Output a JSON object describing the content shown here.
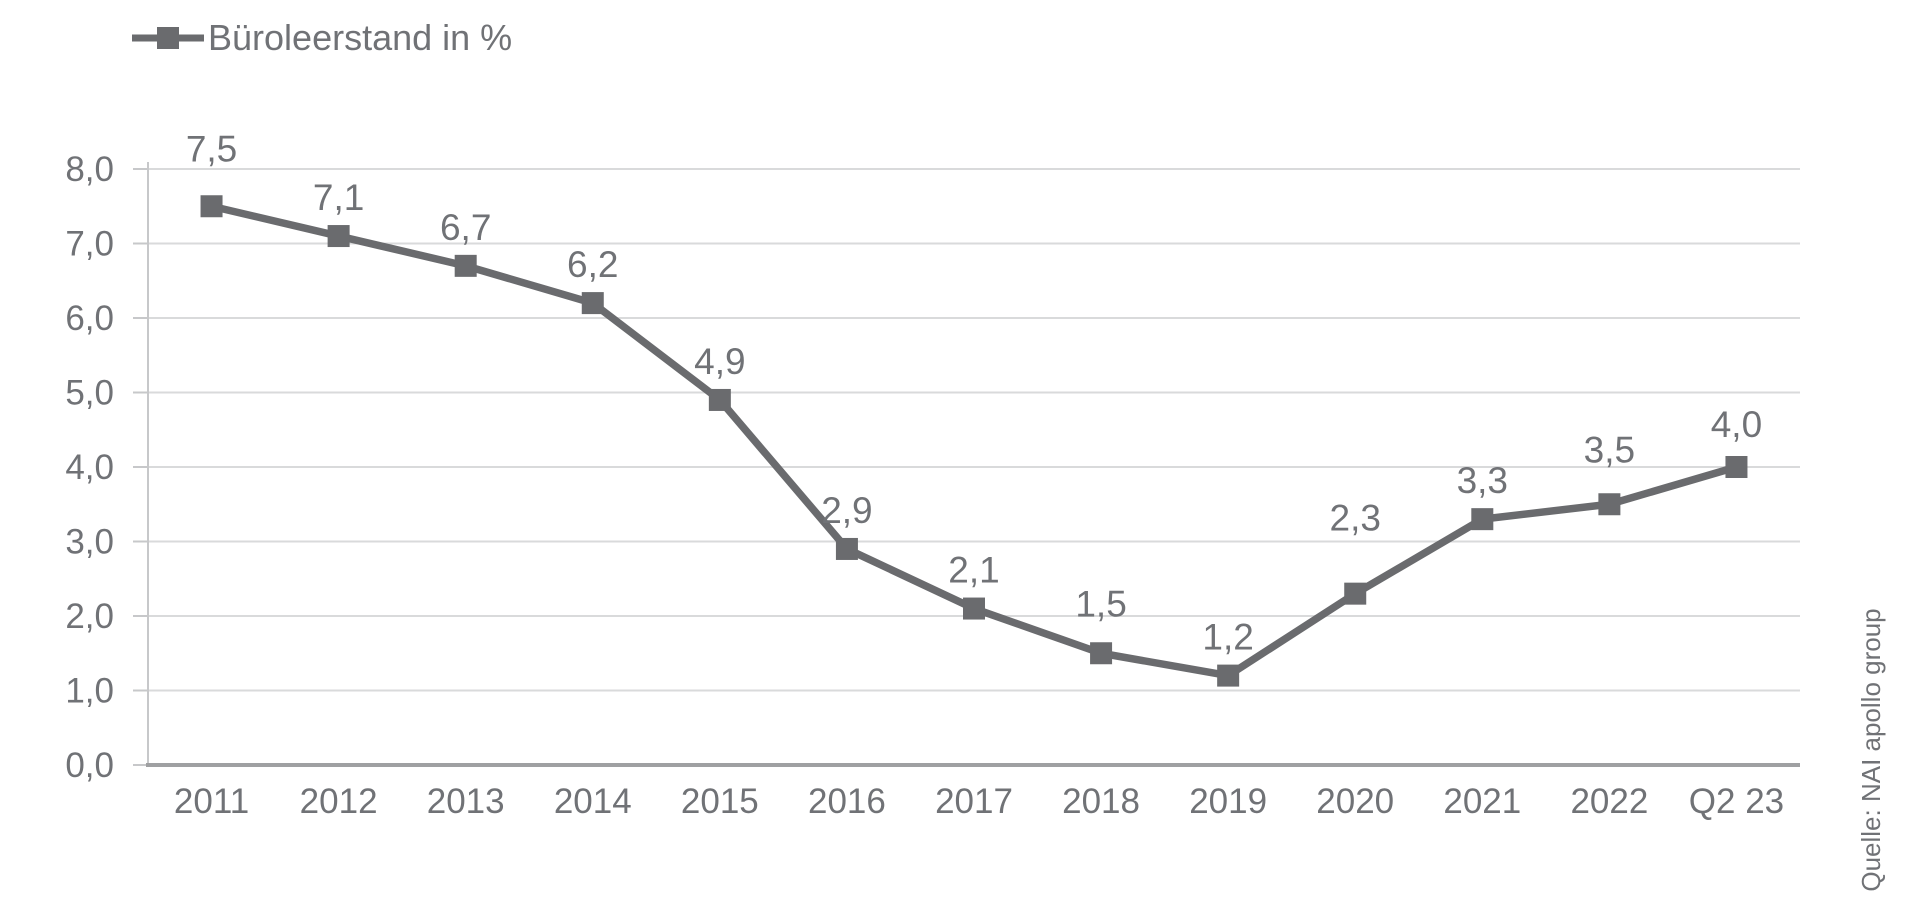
{
  "page": {
    "background": "#ffffff"
  },
  "source_note": "Quelle: NAI apollo group",
  "chart_data": {
    "type": "line",
    "title": "",
    "legend": "Büroleerstand in %",
    "legend_position": "top-left",
    "categories": [
      "2011",
      "2012",
      "2013",
      "2014",
      "2015",
      "2016",
      "2017",
      "2018",
      "2019",
      "2020",
      "2021",
      "2022",
      "Q2 23"
    ],
    "values": [
      7.5,
      7.1,
      6.7,
      6.2,
      4.9,
      2.9,
      2.1,
      1.5,
      1.2,
      2.3,
      3.3,
      3.5,
      4.0
    ],
    "value_labels": [
      "7,5",
      "7,1",
      "6,7",
      "6,2",
      "4,9",
      "2,9",
      "2,1",
      "1,5",
      "1,2",
      "2,3",
      "3,3",
      "3,5",
      "4,0"
    ],
    "ylim": [
      0,
      8
    ],
    "y_tick_step": 1,
    "y_tick_labels": [
      "0,0",
      "1,0",
      "2,0",
      "3,0",
      "4,0",
      "5,0",
      "6,0",
      "7,0",
      "8,0"
    ],
    "decimal_separator": ",",
    "grid": "horizontal",
    "marker": "square",
    "xlabel": "",
    "ylabel": "",
    "series_color": "#6a6b6e",
    "text_color": "#707276",
    "gridline_color": "#d9dadb",
    "x_axis_color": "#9fa0a2",
    "y_axis_color": "#c7c8ca",
    "label_dy": [
      -58,
      -39,
      -39,
      -39,
      -39,
      -39,
      -39,
      -50,
      -39,
      -76,
      -39,
      -55,
      -43
    ]
  }
}
